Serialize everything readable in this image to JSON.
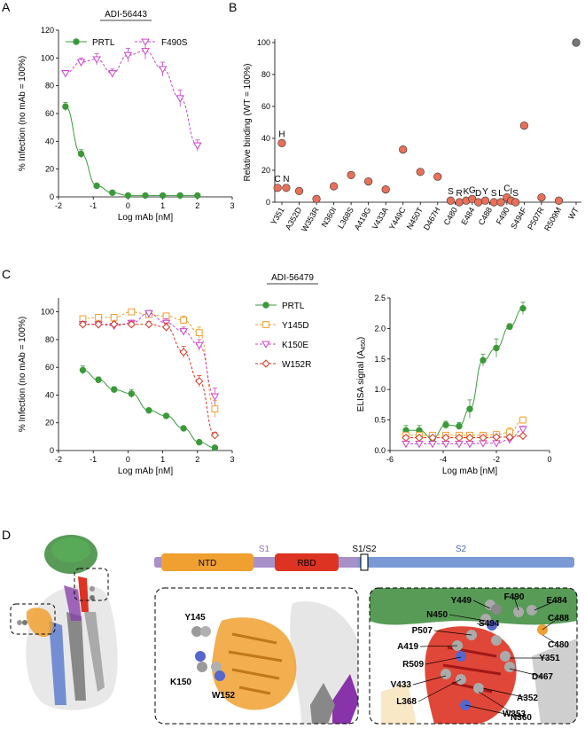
{
  "panels": {
    "A": {
      "letter": "A",
      "mab": "ADI-56443",
      "chart_data": {
        "type": "line",
        "title": "ADI-56443",
        "xlabel": "Log mAb [nM]",
        "ylabel": "% Infection (no mAb = 100%)",
        "xlim": [
          -2,
          3
        ],
        "ylim": [
          0,
          120
        ],
        "xticks": [
          "-2",
          "-1",
          "0",
          "1",
          "2",
          "3"
        ],
        "yticks": [
          "0",
          "20",
          "40",
          "60",
          "80",
          "100",
          "120"
        ],
        "series": [
          {
            "name": "PRTL",
            "color": "#3a9a3a",
            "marker": "circle",
            "x": [
              -1.8,
              -1.35,
              -0.9,
              -0.45,
              0.0,
              0.5,
              1.0,
              1.5,
              2.0
            ],
            "y": [
              65,
              31,
              8,
              3,
              1,
              1,
              1,
              1,
              1
            ],
            "err": [
              3,
              3,
              1,
              0.5,
              0.3,
              0.3,
              0.3,
              0.3,
              0.3
            ]
          },
          {
            "name": "F490S",
            "color": "#cc44cc",
            "marker": "triangle-down",
            "x": [
              -1.8,
              -1.35,
              -0.9,
              -0.45,
              0.0,
              0.5,
              1.0,
              1.5,
              2.0
            ],
            "y": [
              89,
              97,
              99,
              89,
              102,
              105,
              92,
              71,
              37
            ],
            "err": [
              2,
              3,
              4,
              3,
              5,
              6,
              5,
              6,
              4
            ]
          }
        ]
      }
    },
    "B": {
      "letter": "B",
      "chart_data": {
        "type": "scatter",
        "ylabel": "Relative binding (WT = 100%)",
        "ylim": [
          0,
          100
        ],
        "yticks": [
          "0",
          "20",
          "40",
          "60",
          "80",
          "100"
        ],
        "categories": [
          "Y351",
          "A352D",
          "W353R",
          "N360I",
          "L368S",
          "A419G",
          "V433A",
          "Y449C",
          "N450T",
          "D467H",
          "C480",
          "E484",
          "C488",
          "F490",
          "S494F",
          "P507R",
          "R509M",
          "WT"
        ],
        "points": [
          {
            "cat": 0,
            "offset": -0.25,
            "y": 9,
            "label": "C"
          },
          {
            "cat": 0,
            "offset": 0.25,
            "y": 9,
            "label": "N"
          },
          {
            "cat": 0,
            "offset": 0,
            "y": 37,
            "label": "H"
          },
          {
            "cat": 1,
            "offset": 0,
            "y": 7,
            "label": ""
          },
          {
            "cat": 2,
            "offset": 0,
            "y": 2,
            "label": ""
          },
          {
            "cat": 3,
            "offset": 0,
            "y": 10,
            "label": ""
          },
          {
            "cat": 4,
            "offset": 0,
            "y": 17,
            "label": ""
          },
          {
            "cat": 5,
            "offset": 0,
            "y": 13,
            "label": ""
          },
          {
            "cat": 6,
            "offset": 0,
            "y": 8,
            "label": ""
          },
          {
            "cat": 7,
            "offset": 0,
            "y": 33,
            "label": ""
          },
          {
            "cat": 8,
            "offset": 0,
            "y": 19,
            "label": ""
          },
          {
            "cat": 9,
            "offset": 0,
            "y": 16,
            "label": ""
          },
          {
            "cat": 10,
            "offset": -0.25,
            "y": 1,
            "label": "S"
          },
          {
            "cat": 10,
            "offset": 0.25,
            "y": 0,
            "label": "R"
          },
          {
            "cat": 11,
            "offset": -0.35,
            "y": 1,
            "label": "K"
          },
          {
            "cat": 11,
            "offset": 0,
            "y": 2,
            "label": "G"
          },
          {
            "cat": 11,
            "offset": 0.35,
            "y": 0,
            "label": "D"
          },
          {
            "cat": 12,
            "offset": -0.25,
            "y": 1,
            "label": "Y"
          },
          {
            "cat": 12,
            "offset": 0.25,
            "y": 0,
            "label": "S"
          },
          {
            "cat": 13,
            "offset": -0.35,
            "y": 0,
            "label": "L"
          },
          {
            "cat": 13,
            "offset": 0,
            "y": 3,
            "label": "C"
          },
          {
            "cat": 13,
            "offset": 0.25,
            "y": 1,
            "label": "I"
          },
          {
            "cat": 13,
            "offset": 0.5,
            "y": 0,
            "label": "S"
          },
          {
            "cat": 14,
            "offset": 0,
            "y": 48,
            "label": ""
          },
          {
            "cat": 15,
            "offset": 0,
            "y": 3,
            "label": ""
          },
          {
            "cat": 16,
            "offset": 0,
            "y": 1,
            "label": ""
          },
          {
            "cat": 17,
            "offset": 0,
            "y": 100,
            "label": "",
            "grey": true
          }
        ],
        "point_color": "#e8705a",
        "wt_color": "#777777"
      }
    },
    "C": {
      "letter": "C",
      "mab": "ADI-56479",
      "legend": [
        "PRTL",
        "Y145D",
        "K150E",
        "W152R"
      ],
      "neutralization": {
        "type": "line",
        "xlabel": "Log mAb [nM]",
        "ylabel": "% Infection (no mAb = 100%)",
        "xlim": [
          -2,
          3
        ],
        "ylim": [
          0,
          110
        ],
        "xticks": [
          "-2",
          "-1",
          "0",
          "1",
          "2",
          "3"
        ],
        "yticks": [
          "0",
          "20",
          "40",
          "60",
          "80",
          "100"
        ],
        "series": [
          {
            "name": "PRTL",
            "color": "#3a9a3a",
            "marker": "circle",
            "x": [
              -1.3,
              -0.85,
              -0.4,
              0.1,
              0.6,
              1.1,
              1.6,
              2.05,
              2.5
            ],
            "y": [
              58,
              51,
              44,
              41,
              29,
              25,
              16,
              6,
              2
            ],
            "err": [
              3,
              2,
              2,
              3,
              1,
              1,
              1,
              1,
              0.5
            ]
          },
          {
            "name": "Y145D",
            "color": "#f0a030",
            "marker": "square",
            "x": [
              -1.3,
              -0.85,
              -0.4,
              0.1,
              0.6,
              1.1,
              1.6,
              2.05,
              2.5
            ],
            "y": [
              95,
              96,
              96,
              100,
              98,
              97,
              94,
              85,
              30
            ],
            "err": [
              2,
              2,
              2,
              2,
              2,
              2,
              3,
              4,
              6
            ]
          },
          {
            "name": "K150E",
            "color": "#cc44cc",
            "marker": "triangle-down",
            "x": [
              -1.3,
              -0.85,
              -0.4,
              0.1,
              0.6,
              1.1,
              1.6,
              2.05,
              2.5
            ],
            "y": [
              91,
              91,
              90,
              92,
              99,
              92,
              86,
              76,
              39
            ],
            "err": [
              2,
              2,
              2,
              2,
              2,
              3,
              3,
              4,
              6
            ]
          },
          {
            "name": "W152R",
            "color": "#dd3322",
            "marker": "diamond",
            "x": [
              -1.3,
              -0.85,
              -0.4,
              0.1,
              0.6,
              1.1,
              1.6,
              2.05,
              2.5
            ],
            "y": [
              91,
              91,
              91,
              91,
              91,
              89,
              71,
              50,
              11
            ],
            "err": [
              2,
              2,
              2,
              2,
              2,
              3,
              4,
              4,
              2
            ]
          }
        ]
      },
      "elisa": {
        "type": "line",
        "xlabel": "Log mAb [nM]",
        "ylabel": "ELISA signal (A",
        "ylabel_sub": "450",
        "ylabel_end": ")",
        "xlim": [
          -6,
          0
        ],
        "ylim": [
          0,
          2.5
        ],
        "xticks": [
          "-6",
          "-4",
          "-2",
          "0"
        ],
        "yticks": [
          "0.0",
          "0.5",
          "1.0",
          "1.5",
          "2.0",
          "2.5"
        ],
        "series": [
          {
            "name": "PRTL",
            "color": "#3a9a3a",
            "marker": "circle",
            "x": [
              -5.4,
              -4.9,
              -4.4,
              -3.9,
              -3.4,
              -3.0,
              -2.5,
              -2.0,
              -1.5,
              -1.0
            ],
            "y": [
              0.33,
              0.33,
              0.2,
              0.42,
              0.4,
              0.68,
              1.48,
              1.68,
              2.03,
              2.33
            ],
            "err": [
              0.08,
              0.08,
              0.05,
              0.06,
              0.06,
              0.15,
              0.1,
              0.15,
              0.05,
              0.1
            ]
          },
          {
            "name": "Y145D",
            "color": "#f0a030",
            "marker": "square",
            "x": [
              -5.4,
              -4.9,
              -4.4,
              -3.9,
              -3.4,
              -3.0,
              -2.5,
              -2.0,
              -1.5,
              -1.0
            ],
            "y": [
              0.25,
              0.25,
              0.25,
              0.25,
              0.25,
              0.25,
              0.25,
              0.26,
              0.3,
              0.5
            ],
            "err": [
              0.03,
              0.03,
              0.03,
              0.03,
              0.03,
              0.03,
              0.03,
              0.05,
              0.07,
              0.05
            ]
          },
          {
            "name": "K150E",
            "color": "#cc44cc",
            "marker": "triangle-down",
            "x": [
              -5.4,
              -4.9,
              -4.4,
              -3.9,
              -3.4,
              -3.0,
              -2.5,
              -2.0,
              -1.5,
              -1.0
            ],
            "y": [
              0.11,
              0.11,
              0.11,
              0.11,
              0.11,
              0.11,
              0.12,
              0.12,
              0.18,
              0.35
            ],
            "err": [
              0.03,
              0.03,
              0.03,
              0.03,
              0.03,
              0.03,
              0.03,
              0.04,
              0.05,
              0.05
            ]
          },
          {
            "name": "W152R",
            "color": "#dd3322",
            "marker": "diamond",
            "x": [
              -5.4,
              -4.9,
              -4.4,
              -3.9,
              -3.4,
              -3.0,
              -2.5,
              -2.0,
              -1.5,
              -1.0
            ],
            "y": [
              0.21,
              0.21,
              0.21,
              0.21,
              0.21,
              0.21,
              0.21,
              0.22,
              0.22,
              0.24
            ],
            "err": [
              0.03,
              0.03,
              0.03,
              0.03,
              0.03,
              0.03,
              0.03,
              0.03,
              0.03,
              0.03
            ]
          }
        ]
      }
    },
    "D": {
      "letter": "D",
      "domains": {
        "ntd": "NTD",
        "s1": "S1",
        "rbd": "RBD",
        "s1s2": "S1/S2",
        "s2": "S2"
      },
      "ntd_residues": [
        "Y145",
        "K150",
        "W152"
      ],
      "rbd_residues": [
        "Y449",
        "F490",
        "E484",
        "N450",
        "S494",
        "C488",
        "P507",
        "A419",
        "C480",
        "Y351",
        "R509",
        "D467",
        "V433",
        "A352",
        "L368",
        "W353",
        "N360"
      ]
    }
  }
}
